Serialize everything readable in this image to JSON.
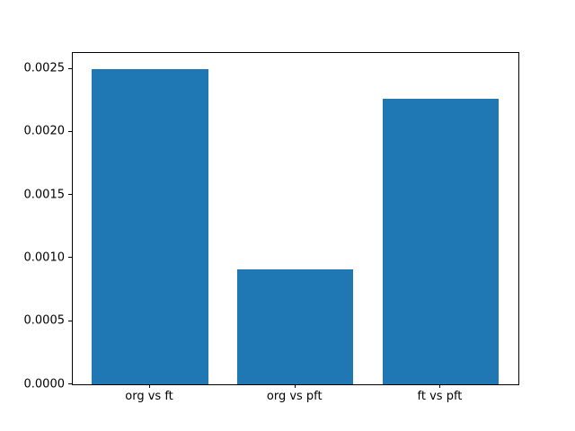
{
  "figure": {
    "background": "#ffffff",
    "spine_color": "#000000"
  },
  "chart_data": {
    "type": "bar",
    "title": "",
    "xlabel": "",
    "ylabel": "",
    "categories": [
      "org vs ft",
      "org vs pft",
      "ft vs pft"
    ],
    "values": [
      0.0025,
      0.00091,
      0.00226
    ],
    "bar_color": "#1f77b4",
    "bar_width_fraction": 0.8,
    "xlim": [
      -0.532,
      2.535
    ],
    "ylim": [
      0,
      0.002625
    ],
    "yticks": [
      0.0,
      0.0005,
      0.001,
      0.0015,
      0.002,
      0.0025
    ],
    "ytick_labels": [
      "0.0000",
      "0.0005",
      "0.0010",
      "0.0015",
      "0.0020",
      "0.0025"
    ],
    "grid": false,
    "legend": null
  }
}
